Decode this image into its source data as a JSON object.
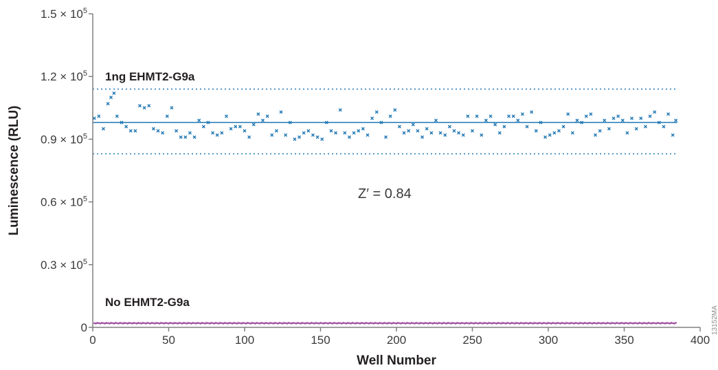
{
  "chart_data": {
    "type": "scatter",
    "xlabel": "Well Number",
    "ylabel": "Luminescence (RLU)",
    "xlim": [
      0,
      400
    ],
    "ylim": [
      0,
      150000
    ],
    "x_ticks": [
      0,
      50,
      100,
      150,
      200,
      250,
      300,
      350,
      400
    ],
    "x_tick_labels": [
      "0",
      "50",
      "100",
      "150",
      "200",
      "250",
      "300",
      "350",
      "400"
    ],
    "y_ticks": [
      0,
      30000,
      60000,
      90000,
      120000,
      150000
    ],
    "y_tick_labels": [
      {
        "coef": "0",
        "exp": ""
      },
      {
        "coef": "0.3 × 10",
        "exp": "5"
      },
      {
        "coef": "0.6 × 10",
        "exp": "5"
      },
      {
        "coef": "0.9 × 10",
        "exp": "5"
      },
      {
        "coef": "1.2 × 10",
        "exp": "5"
      },
      {
        "coef": "1.5 × 10",
        "exp": "5"
      }
    ],
    "series": [
      {
        "name": "1ng EHMT2-G9a",
        "color": "#1f77b4",
        "marker": "x",
        "mean": 98000,
        "bounds": [
          83000,
          114000
        ],
        "x": [
          1,
          4,
          7,
          10,
          12,
          14,
          16,
          19,
          22,
          25,
          28,
          31,
          34,
          37,
          40,
          43,
          46,
          49,
          52,
          55,
          58,
          61,
          64,
          67,
          70,
          73,
          76,
          79,
          82,
          85,
          88,
          91,
          94,
          97,
          100,
          103,
          106,
          109,
          112,
          115,
          118,
          121,
          124,
          127,
          130,
          133,
          136,
          139,
          142,
          145,
          148,
          151,
          154,
          157,
          160,
          163,
          166,
          169,
          172,
          175,
          178,
          181,
          184,
          187,
          190,
          193,
          196,
          199,
          202,
          205,
          208,
          211,
          214,
          217,
          220,
          223,
          226,
          229,
          232,
          235,
          238,
          241,
          244,
          247,
          250,
          253,
          256,
          259,
          262,
          265,
          268,
          271,
          274,
          277,
          280,
          283,
          286,
          289,
          292,
          295,
          298,
          301,
          304,
          307,
          310,
          313,
          316,
          319,
          322,
          325,
          328,
          331,
          334,
          337,
          340,
          343,
          346,
          349,
          352,
          355,
          358,
          361,
          364,
          367,
          370,
          373,
          376,
          379,
          382,
          384
        ],
        "y": [
          100000,
          101000,
          95000,
          107000,
          110000,
          112000,
          101000,
          98000,
          96000,
          94000,
          94000,
          106000,
          105000,
          106000,
          95000,
          94000,
          93000,
          101000,
          105000,
          94000,
          91000,
          91000,
          93000,
          91000,
          99000,
          96000,
          98000,
          93000,
          92000,
          93000,
          101000,
          95000,
          96000,
          96000,
          94000,
          91000,
          97000,
          102000,
          99000,
          101000,
          92000,
          94000,
          103000,
          92000,
          98000,
          90000,
          91000,
          93000,
          94000,
          92000,
          91000,
          90000,
          98000,
          94000,
          93000,
          104000,
          93000,
          91000,
          93000,
          94000,
          95000,
          92000,
          100000,
          103000,
          98000,
          91000,
          101000,
          104000,
          96000,
          93000,
          94000,
          97000,
          94000,
          91000,
          95000,
          93000,
          99000,
          93000,
          92000,
          96000,
          94000,
          93000,
          92000,
          101000,
          94000,
          101000,
          92000,
          99000,
          101000,
          97000,
          93000,
          96000,
          101000,
          101000,
          99000,
          102000,
          96000,
          103000,
          94000,
          98000,
          91000,
          92000,
          93000,
          94000,
          96000,
          102000,
          93000,
          99000,
          98000,
          101000,
          102000,
          92000,
          94000,
          99000,
          95000,
          100000,
          101000,
          99000,
          93000,
          100000,
          95000,
          100000,
          96000,
          101000,
          103000,
          98000,
          96000,
          102000,
          92000,
          99000
        ]
      },
      {
        "name": "No EHMT2-G9a",
        "color": "#a55ca5",
        "marker": "o",
        "mean": 2000,
        "x_range": [
          1,
          384
        ],
        "y_level": 2000
      }
    ],
    "annotations": [
      {
        "text": "Z′ = 0.84",
        "x": 200,
        "y": 68000
      }
    ],
    "figure_id": "13152MA"
  }
}
